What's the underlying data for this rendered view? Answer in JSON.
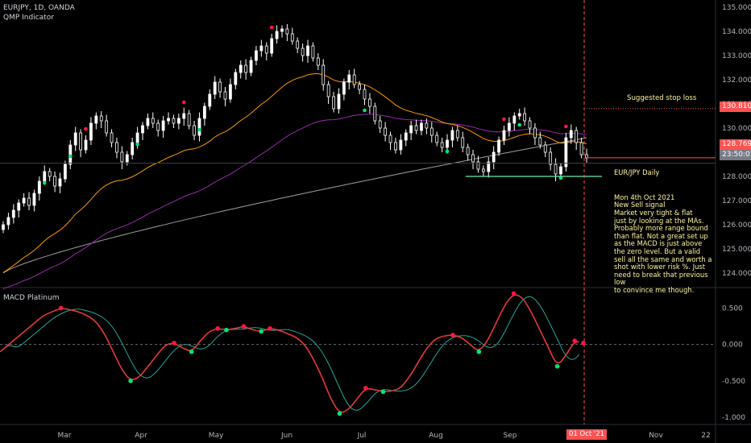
{
  "header": {
    "symbol": "EURJPY, 1D, OANDA",
    "indicator": "QMP Indicator",
    "macd_title": "MACD Platinum"
  },
  "price_tags": {
    "stop": "130.810",
    "current": "128.769",
    "countdown": "23:50:07"
  },
  "annotations": {
    "stop_label": "Suggested stop loss",
    "note_title": "EUR/JPY Daily",
    "note_body": "Mon 4th Oct 2021\nNew Sell signal\nMarket very tight & flat\njust by looking at the MAs.\nProbably more range bound\nthan flat.  Not a great set up\nas the MACD is just above\nthe zero level.  But a valid\nsell all the same and worth a\nshot with lower risk %.  Just\nneed to break that previous low\nto convince me though."
  },
  "time_axis": {
    "labels": [
      "Mar",
      "Apr",
      "May",
      "Jun",
      "Jul",
      "Aug",
      "Sep",
      "Oct",
      "Nov",
      "22"
    ],
    "current_date": "01 Oct '21"
  },
  "colors": {
    "background": "#000000",
    "up_candle": "#ffffff",
    "down_candle": "#ffffff",
    "ma_fast": "#ff9800",
    "ma_mid": "#9c27b0",
    "ma_slow": "#9e9e9e",
    "macd_line": "#e53935",
    "signal_line": "#26a69a",
    "buy_dot": "#00e676",
    "sell_dot": "#ff1744",
    "support": "#69f0ae",
    "stop_line": "#ff5252",
    "current_line": "#ff5252"
  },
  "chart_data": [
    {
      "type": "line",
      "name_ref": "header.symbol",
      "y_axis_ticks": [
        "135.000",
        "134.000",
        "133.000",
        "132.000",
        "131.000",
        "130.000",
        "129.000",
        "128.000",
        "127.000",
        "126.000",
        "125.000",
        "124.000"
      ],
      "ylim": [
        123.4,
        135.3
      ],
      "x_days": 150,
      "close": [
        126.0,
        126.3,
        126.6,
        126.9,
        127.1,
        126.8,
        127.3,
        127.8,
        128.2,
        128.0,
        127.6,
        127.9,
        128.5,
        129.3,
        129.8,
        129.1,
        129.5,
        130.2,
        130.5,
        130.3,
        129.8,
        129.4,
        129.0,
        128.6,
        128.9,
        129.4,
        129.8,
        130.1,
        130.4,
        130.2,
        129.9,
        130.3,
        130.4,
        130.2,
        130.4,
        130.6,
        130.1,
        129.7,
        130.4,
        130.9,
        131.4,
        131.9,
        131.5,
        131.2,
        131.8,
        132.3,
        132.6,
        132.3,
        132.8,
        133.2,
        133.4,
        133.1,
        133.7,
        134.0,
        134.1,
        133.9,
        133.6,
        133.3,
        133.0,
        133.4,
        132.9,
        132.6,
        131.8,
        131.3,
        130.8,
        131.4,
        131.9,
        132.2,
        131.8,
        131.6,
        131.2,
        130.9,
        130.3,
        130.0,
        129.7,
        129.4,
        129.1,
        129.5,
        129.8,
        130.1,
        129.9,
        130.2,
        130.0,
        129.7,
        129.4,
        129.2,
        129.5,
        129.9,
        129.6,
        129.2,
        128.9,
        128.6,
        128.3,
        128.2,
        128.6,
        129.0,
        129.5,
        129.9,
        130.2,
        130.5,
        130.6,
        130.3,
        130.0,
        129.6,
        129.3,
        129.0,
        128.5,
        128.1,
        128.4,
        129.6,
        129.9,
        129.4,
        128.9,
        128.769
      ],
      "ma_fast_end": 129.3,
      "ma_mid_end": 130.0,
      "ma_slow_end": 129.6,
      "stop_loss": 130.81,
      "support_level": 128.0
    },
    {
      "type": "line",
      "name_ref": "header.macd_title",
      "y_axis_ticks": [
        "0.500",
        "0.000",
        "-0.500",
        "-1.000"
      ],
      "ylim": [
        -1.1,
        0.75
      ],
      "macd": [
        -0.1,
        0.0,
        0.1,
        0.2,
        0.3,
        0.4,
        0.45,
        0.5,
        0.48,
        0.45,
        0.4,
        0.32,
        0.15,
        -0.1,
        -0.35,
        -0.5,
        -0.45,
        -0.3,
        -0.15,
        0.0,
        0.02,
        -0.05,
        -0.1,
        0.05,
        0.18,
        0.22,
        0.2,
        0.22,
        0.25,
        0.2,
        0.18,
        0.22,
        0.2,
        0.15,
        0.1,
        0.0,
        -0.2,
        -0.45,
        -0.75,
        -0.95,
        -0.9,
        -0.75,
        -0.6,
        -0.62,
        -0.65,
        -0.64,
        -0.6,
        -0.45,
        -0.25,
        -0.05,
        0.08,
        0.12,
        0.13,
        0.1,
        0.0,
        -0.1,
        0.05,
        0.3,
        0.55,
        0.7,
        0.65,
        0.45,
        0.2,
        -0.05,
        -0.3,
        -0.15,
        0.05,
        0.02
      ]
    }
  ]
}
